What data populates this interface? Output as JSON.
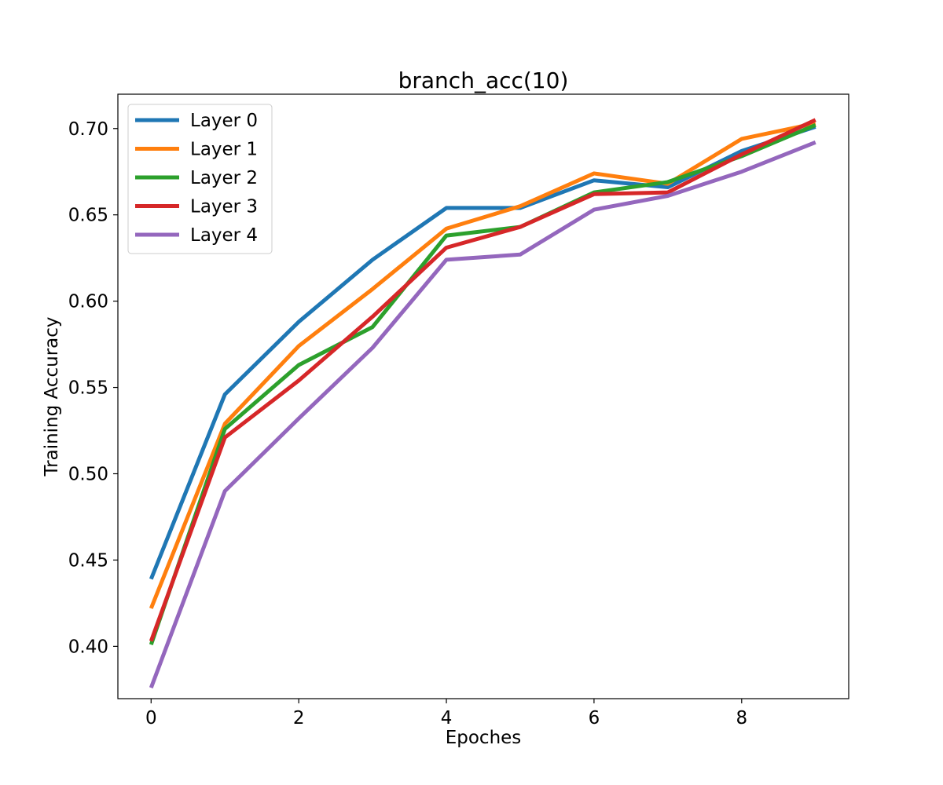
{
  "chart_data": {
    "type": "line",
    "title": "branch_acc(10)",
    "xlabel": "Epoches",
    "ylabel": "Training Accuracy",
    "xlim": [
      -0.45,
      9.45
    ],
    "ylim": [
      0.3697,
      0.7199
    ],
    "xticks": [
      0,
      2,
      4,
      6,
      8
    ],
    "yticks": [
      0.4,
      0.45,
      0.5,
      0.55,
      0.6,
      0.65,
      0.7
    ],
    "grid": false,
    "legend_position": "upper-left",
    "x": [
      0,
      1,
      2,
      3,
      4,
      5,
      6,
      7,
      8,
      9
    ],
    "series": [
      {
        "name": "Layer 0",
        "color": "#1f77b4",
        "values": [
          0.439,
          0.546,
          0.588,
          0.624,
          0.654,
          0.654,
          0.67,
          0.666,
          0.687,
          0.701
        ]
      },
      {
        "name": "Layer 1",
        "color": "#ff7f0e",
        "values": [
          0.422,
          0.529,
          0.574,
          0.607,
          0.642,
          0.655,
          0.674,
          0.668,
          0.694,
          0.703
        ]
      },
      {
        "name": "Layer 2",
        "color": "#2ca02c",
        "values": [
          0.401,
          0.526,
          0.563,
          0.585,
          0.638,
          0.643,
          0.663,
          0.669,
          0.684,
          0.702
        ]
      },
      {
        "name": "Layer 3",
        "color": "#d62728",
        "values": [
          0.403,
          0.521,
          0.554,
          0.591,
          0.631,
          0.643,
          0.662,
          0.663,
          0.685,
          0.705
        ]
      },
      {
        "name": "Layer 4",
        "color": "#9467bd",
        "values": [
          0.376,
          0.49,
          0.532,
          0.573,
          0.624,
          0.627,
          0.653,
          0.661,
          0.675,
          0.692
        ]
      }
    ]
  }
}
